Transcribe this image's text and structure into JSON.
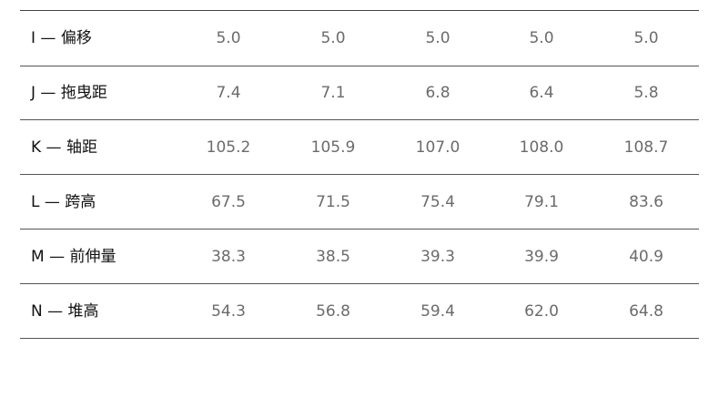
{
  "table": {
    "rows": [
      [
        "I — 偏移",
        "5.0",
        "5.0",
        "5.0",
        "5.0",
        "5.0"
      ],
      [
        "J — 拖曳距",
        "7.4",
        "7.1",
        "6.8",
        "6.4",
        "5.8"
      ],
      [
        "K — 轴距",
        "105.2",
        "105.9",
        "107.0",
        "108.0",
        "108.7"
      ],
      [
        "L — 跨高",
        "67.5",
        "71.5",
        "75.4",
        "79.1",
        "83.6"
      ],
      [
        "M — 前伸量",
        "38.3",
        "38.5",
        "39.3",
        "39.9",
        "40.9"
      ],
      [
        "N — 堆高",
        "54.3",
        "56.8",
        "59.4",
        "62.0",
        "64.8"
      ]
    ]
  }
}
